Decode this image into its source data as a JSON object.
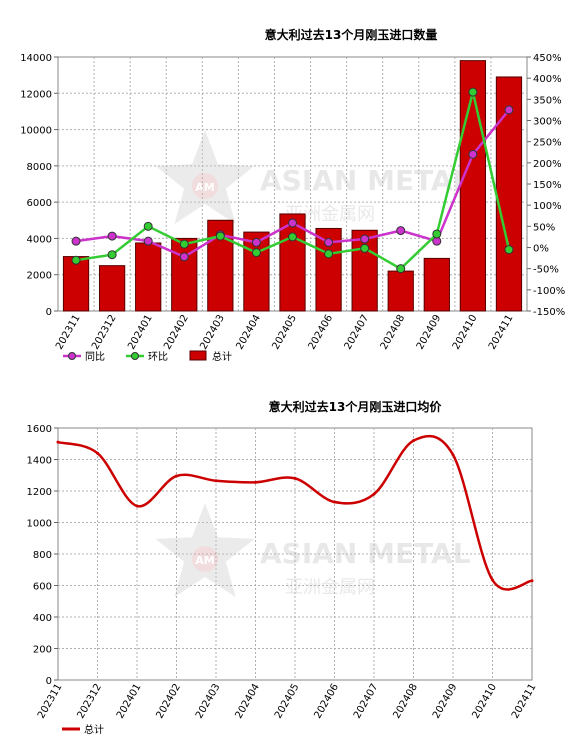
{
  "chart_data": [
    {
      "type": "bar",
      "title": "意大利过去13个月刚玉进口数量",
      "categories": [
        "202311",
        "202312",
        "202401",
        "202402",
        "202403",
        "202404",
        "202405",
        "202406",
        "202407",
        "202408",
        "202409",
        "202410",
        "202411"
      ],
      "series": [
        {
          "name": "总计",
          "kind": "bar",
          "axis": "left",
          "values": [
            3000,
            2500,
            3750,
            4000,
            5000,
            4350,
            5350,
            4550,
            4450,
            2200,
            2900,
            13800,
            12900
          ]
        },
        {
          "name": "同比",
          "kind": "line",
          "axis": "right",
          "values": [
            15,
            27,
            15,
            -22,
            30,
            12,
            58,
            12,
            20,
            40,
            15,
            220,
            325
          ]
        },
        {
          "name": "环比",
          "kind": "line",
          "axis": "right",
          "values": [
            -30,
            -17,
            50,
            8,
            27,
            -12,
            25,
            -15,
            -2,
            -50,
            32,
            367,
            -5
          ]
        }
      ],
      "ylim": [
        0,
        14000
      ],
      "yticks": [
        "0",
        "2000",
        "4000",
        "6000",
        "8000",
        "10000",
        "12000",
        "14000"
      ],
      "y2lim": [
        -150,
        450
      ],
      "y2ticks": [
        "-150%",
        "-100%",
        "-50%",
        "0%",
        "50%",
        "100%",
        "150%",
        "200%",
        "250%",
        "300%",
        "350%",
        "400%",
        "450%"
      ],
      "legend": [
        {
          "label": "同比",
          "color": "#cc33cc",
          "marker": "line-dot"
        },
        {
          "label": "环比",
          "color": "#33cc33",
          "marker": "line-dot"
        },
        {
          "label": "总计",
          "color": "#cc0000",
          "marker": "bar"
        }
      ],
      "colors": {
        "bar": "#cc0000",
        "bar_edge": "#550000",
        "yoy": "#cc33cc",
        "mom": "#33cc33"
      },
      "grid": true,
      "legend_position": "bottom"
    },
    {
      "type": "line",
      "title": "意大利过去13个月刚玉进口均价",
      "categories": [
        "202311",
        "202312",
        "202401",
        "202402",
        "202403",
        "202404",
        "202405",
        "202406",
        "202407",
        "202408",
        "202409",
        "202410",
        "202411"
      ],
      "series": [
        {
          "name": "总计",
          "values": [
            1510,
            1440,
            1105,
            1295,
            1265,
            1255,
            1280,
            1130,
            1180,
            1520,
            1430,
            635,
            630
          ]
        }
      ],
      "ylim": [
        0,
        1600
      ],
      "yticks": [
        "0",
        "200",
        "400",
        "600",
        "800",
        "1000",
        "1200",
        "1400",
        "1600"
      ],
      "legend": [
        {
          "label": "总计",
          "color": "#cc0000",
          "marker": "line"
        }
      ],
      "colors": {
        "line": "#cc0000"
      },
      "grid": true,
      "legend_position": "bottom"
    }
  ],
  "watermark": {
    "text_en": "ASIAN METAL",
    "text_cn": "亚洲金属网",
    "logo": "AM"
  }
}
